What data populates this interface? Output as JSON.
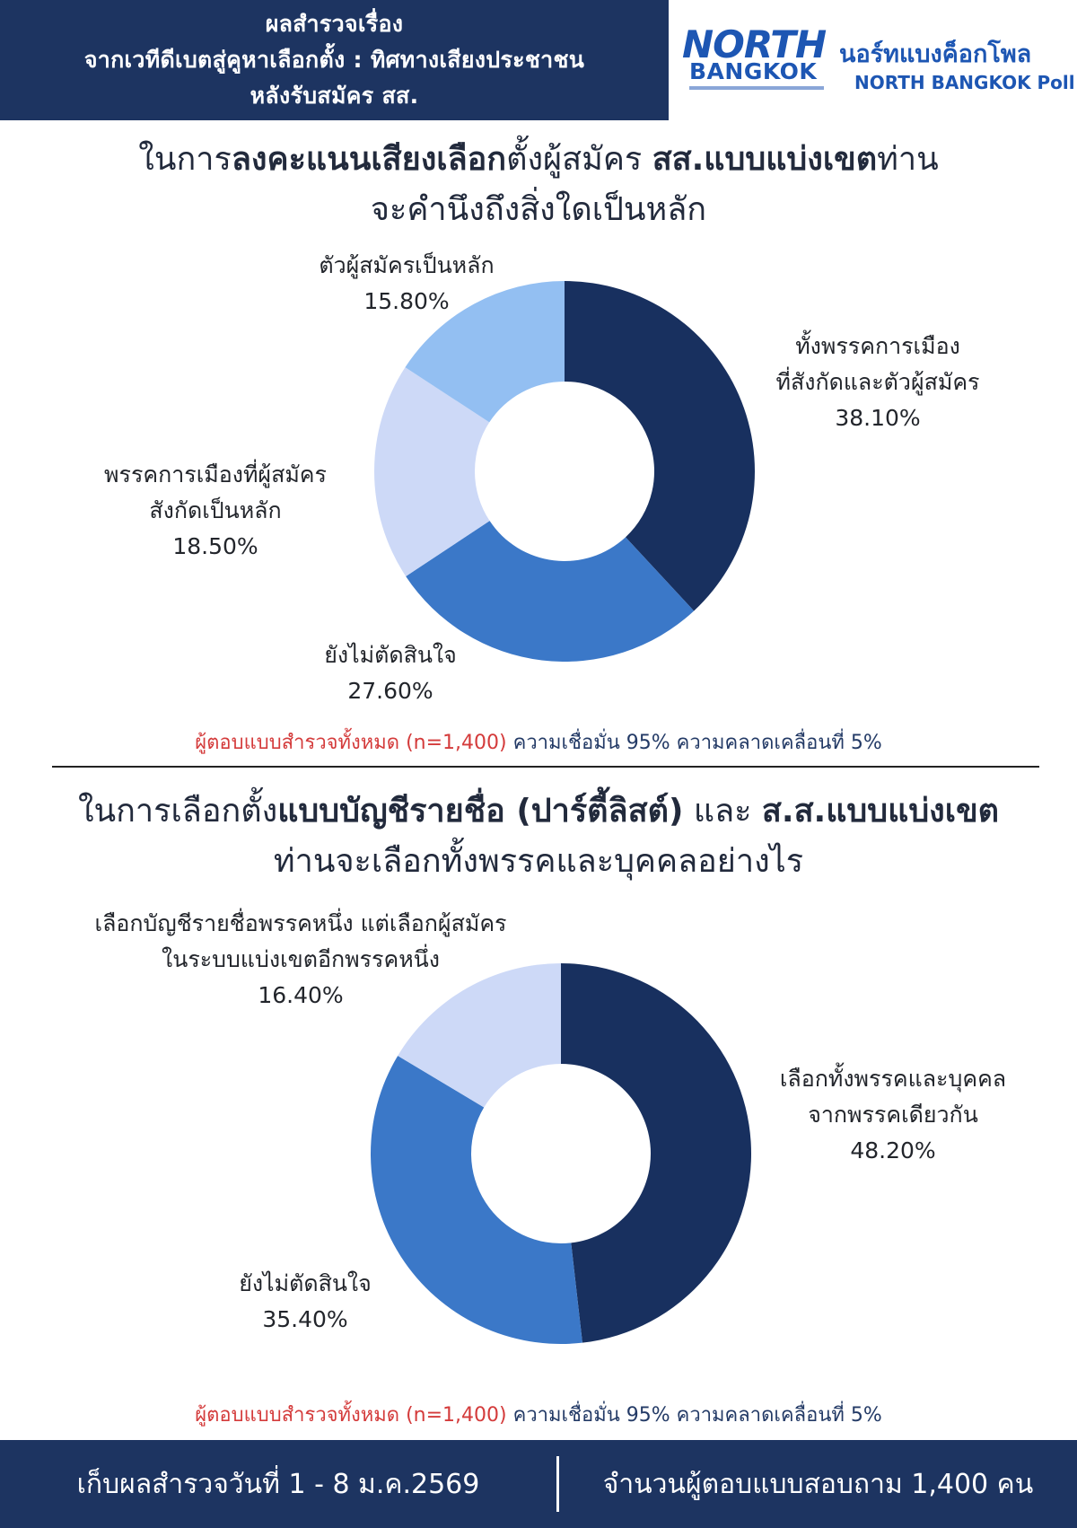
{
  "header": {
    "line1": "ผลสำรวจเรื่อง",
    "line2": "จากเวทีดีเบตสู่คูหาเลือกตั้ง : ทิศทางเสียงประชาชน",
    "line3": "หลังรับสมัคร สส.",
    "logo_line1": "NORTH",
    "logo_line2": "BANGKOK",
    "brand_thai": "นอร์ทแบงค็อกโพล",
    "brand_en": "NORTH BANGKOK Poll"
  },
  "section1": {
    "title_parts": [
      "ในการ",
      "ลงคะแนนเสียงเลือก",
      "ตั้งผู้สมัคร ",
      "สส.แบบแบ่งเขต",
      "ท่าน"
    ],
    "title_line2": "จะคำนึงถึงสิ่งใดเป็นหลัก",
    "note_red": "ผู้ตอบแบบสำรวจทั้งหมด (n=1,400)",
    "note_blue": " ความเชื่อมั่น 95% ความคลาดเคลื่อนที่ 5%"
  },
  "section2": {
    "title_parts": [
      "ในการเลือกตั้ง",
      "แบบบัญชีรายชื่อ (ปาร์ตี้ลิสต์)",
      " และ ",
      "ส.ส.แบบแบ่งเขต"
    ],
    "title_line2": "ท่านจะเลือกทั้งพรรคและบุคคลอย่างไร",
    "note_red": "ผู้ตอบแบบสำรวจทั้งหมด (n=1,400)",
    "note_blue": " ความเชื่อมั่น 95% ความคลาดเคลื่อนที่ 5%"
  },
  "chart_data": [
    {
      "type": "pie",
      "style": "donut",
      "series": [
        {
          "label_lines": [
            "ทั้งพรรคการเมือง",
            "ที่สังกัดและตัวผู้สมัคร"
          ],
          "value": 38.1,
          "value_text": "38.10%",
          "color": "#18305f"
        },
        {
          "label_lines": [
            "ยังไม่ตัดสินใจ"
          ],
          "value": 27.6,
          "value_text": "27.60%",
          "color": "#3b78c8"
        },
        {
          "label_lines": [
            "พรรคการเมืองที่ผู้สมัคร",
            "สังกัดเป็นหลัก"
          ],
          "value": 18.5,
          "value_text": "18.50%",
          "color": "#cdd9f7"
        },
        {
          "label_lines": [
            "ตัวผู้สมัครเป็นหลัก"
          ],
          "value": 15.8,
          "value_text": "15.80%",
          "color": "#93bff2"
        }
      ]
    },
    {
      "type": "pie",
      "style": "donut",
      "series": [
        {
          "label_lines": [
            "เลือกทั้งพรรคและบุคคล",
            "จากพรรคเดียวกัน"
          ],
          "value": 48.2,
          "value_text": "48.20%",
          "color": "#18305f"
        },
        {
          "label_lines": [
            "ยังไม่ตัดสินใจ"
          ],
          "value": 35.4,
          "value_text": "35.40%",
          "color": "#3b78c8"
        },
        {
          "label_lines": [
            "เลือกบัญชีรายชื่อพรรคหนึ่ง แต่เลือกผู้สมัคร",
            "ในระบบแบ่งเขตอีกพรรคหนึ่ง"
          ],
          "value": 16.4,
          "value_text": "16.40%",
          "color": "#cdd9f7"
        }
      ]
    }
  ],
  "footer": {
    "left": "เก็บผลสำรวจวันที่ 1 - 8 ม.ค.2569",
    "right": "จำนวนผู้ตอบแบบสอบถาม 1,400 คน"
  }
}
